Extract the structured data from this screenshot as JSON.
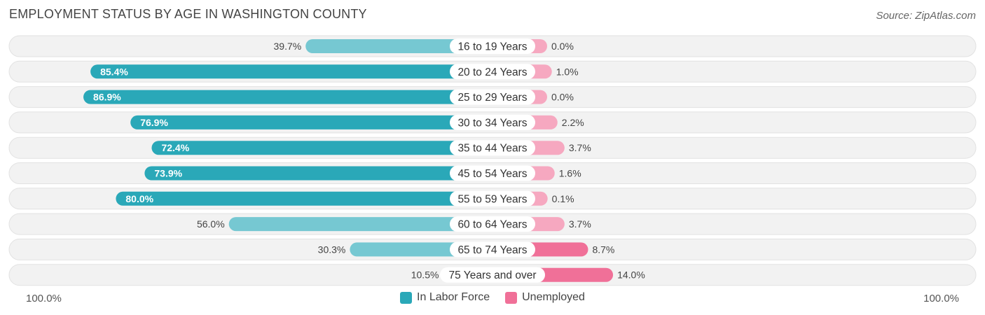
{
  "header": {
    "title": "EMPLOYMENT STATUS BY AGE IN WASHINGTON COUNTY",
    "source": "Source: ZipAtlas.com"
  },
  "axis": {
    "left_label": "100.0%",
    "right_label": "100.0%"
  },
  "legend": {
    "labor_force": "In Labor Force",
    "unemployed": "Unemployed"
  },
  "colors": {
    "labor_force": "#2aa8b8",
    "labor_force_light": "#76c8d2",
    "unemployed": "#f07098",
    "unemployed_light": "#f6a8c0",
    "row_bg": "#f2f2f2",
    "row_border": "#e2e2e2"
  },
  "chart_data": {
    "type": "bar",
    "title": "EMPLOYMENT STATUS BY AGE IN WASHINGTON COUNTY",
    "orientation": "horizontal-diverging",
    "categories": [
      "16 to 19 Years",
      "20 to 24 Years",
      "25 to 29 Years",
      "30 to 34 Years",
      "35 to 44 Years",
      "45 to 54 Years",
      "55 to 59 Years",
      "60 to 64 Years",
      "65 to 74 Years",
      "75 Years and over"
    ],
    "series": [
      {
        "name": "In Labor Force",
        "values": [
          39.7,
          85.4,
          86.9,
          76.9,
          72.4,
          73.9,
          80.0,
          56.0,
          30.3,
          10.5
        ],
        "labels": [
          "39.7%",
          "85.4%",
          "86.9%",
          "76.9%",
          "72.4%",
          "73.9%",
          "80.0%",
          "56.0%",
          "30.3%",
          "10.5%"
        ]
      },
      {
        "name": "Unemployed",
        "values": [
          0.0,
          1.0,
          0.0,
          2.2,
          3.7,
          1.6,
          0.1,
          3.7,
          8.7,
          14.0
        ],
        "labels": [
          "0.0%",
          "1.0%",
          "0.0%",
          "2.2%",
          "3.7%",
          "1.6%",
          "0.1%",
          "3.7%",
          "8.7%",
          "14.0%"
        ]
      }
    ],
    "xlim": [
      -100,
      100
    ],
    "legend_position": "bottom-center"
  }
}
